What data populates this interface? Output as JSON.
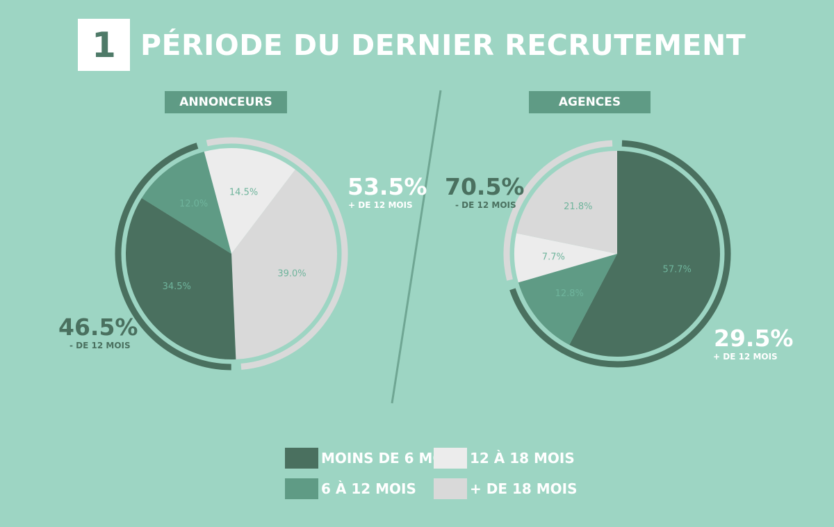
{
  "header": {
    "number": "1",
    "title": "PÉRIODE DU DERNIER RECRUTEMENT"
  },
  "colors": {
    "background": "#9dd5c3",
    "moins_6": "#4a705f",
    "6_12": "#5f9b85",
    "12_18": "#ececec",
    "plus_18": "#d9d9d9",
    "slice_label": "#6fb49c"
  },
  "chart_data": [
    {
      "type": "pie",
      "title": "ANNONCEURS",
      "categories": [
        "MOINS DE 6 MOIS",
        "6 À 12 MOIS",
        "12 À 18 MOIS",
        "+ DE 18 MOIS"
      ],
      "values": [
        34.5,
        12.0,
        14.5,
        39.0
      ],
      "labels": [
        "34.5%",
        "12.0%",
        "14.5%",
        "39.0%"
      ],
      "summary": {
        "under": {
          "value": "46.5%",
          "label": "- DE 12 MOIS"
        },
        "over": {
          "value": "53.5%",
          "label": "+ DE 12 MOIS"
        }
      }
    },
    {
      "type": "pie",
      "title": "AGENCES",
      "categories": [
        "MOINS DE 6 MOIS",
        "6 À 12 MOIS",
        "12 À 18 MOIS",
        "+ DE 18 MOIS"
      ],
      "values": [
        57.7,
        12.8,
        7.7,
        21.8
      ],
      "labels": [
        "57.7%",
        "12.8%",
        "7.7%",
        "21.8%"
      ],
      "summary": {
        "under": {
          "value": "70.5%",
          "label": "- DE 12 MOIS"
        },
        "over": {
          "value": "29.5%",
          "label": "+ DE 12 MOIS"
        }
      }
    }
  ],
  "legend": [
    {
      "label": "MOINS DE 6 MOIS",
      "color": "#4a705f"
    },
    {
      "label": "12 À 18 MOIS",
      "color": "#ececec"
    },
    {
      "label": "6 À 12 MOIS",
      "color": "#5f9b85"
    },
    {
      "label": "+ DE 18 MOIS",
      "color": "#d9d9d9"
    }
  ]
}
